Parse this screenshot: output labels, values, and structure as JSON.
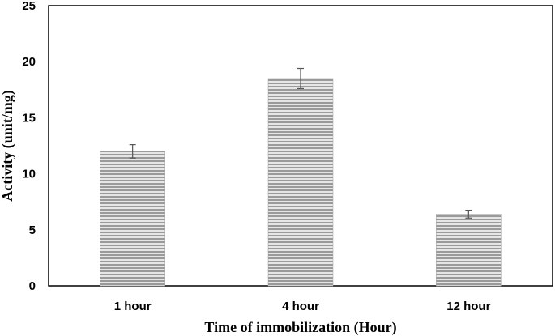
{
  "chart_data": {
    "type": "bar",
    "categories": [
      "1 hour",
      "4 hour",
      "12 hour"
    ],
    "values": [
      12.0,
      18.5,
      6.4
    ],
    "error": [
      0.6,
      0.9,
      0.35
    ],
    "title": "",
    "xlabel": "Time of immobilization (Hour)",
    "ylabel": "Activity (unit/mg)",
    "ylim": [
      0,
      25
    ],
    "yticks": [
      "0",
      "5",
      "10",
      "15",
      "20",
      "25"
    ],
    "grid": false,
    "bar_color": "#c8c8c8",
    "bar_stripe_color": "#8f8f8f"
  }
}
